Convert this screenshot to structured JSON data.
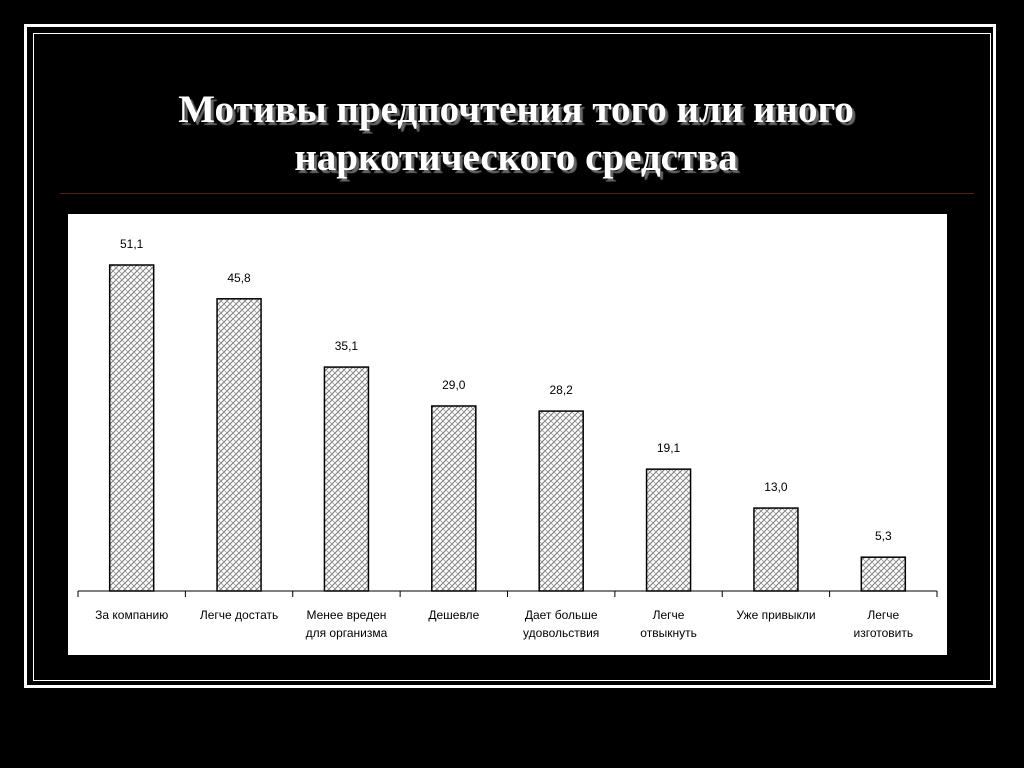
{
  "slide": {
    "title_line1": "Мотивы предпочтения того или иного",
    "title_line2": "наркотического средства"
  },
  "chart_data": {
    "type": "bar",
    "categories": [
      [
        "За компанию"
      ],
      [
        "Легче достать"
      ],
      [
        "Менее вреден",
        "для организма"
      ],
      [
        "Дешевле"
      ],
      [
        "Дает больше",
        "удовольствия"
      ],
      [
        "Легче",
        "отвыкнуть"
      ],
      [
        "Уже привыкли"
      ],
      [
        "Легче",
        "изготовить"
      ]
    ],
    "values": [
      51.1,
      45.8,
      35.1,
      29.0,
      28.2,
      19.1,
      13.0,
      5.3
    ],
    "value_labels": [
      "51,1",
      "45,8",
      "35,1",
      "29,0",
      "28,2",
      "19,1",
      "13,0",
      "5,3"
    ],
    "ylim": [
      0,
      51.1
    ],
    "grid": false,
    "legend": "none",
    "bar_fill": "hatched",
    "colors": {
      "bar_stroke": "#000000",
      "hatch": "#777777",
      "background": "#ffffff"
    }
  }
}
